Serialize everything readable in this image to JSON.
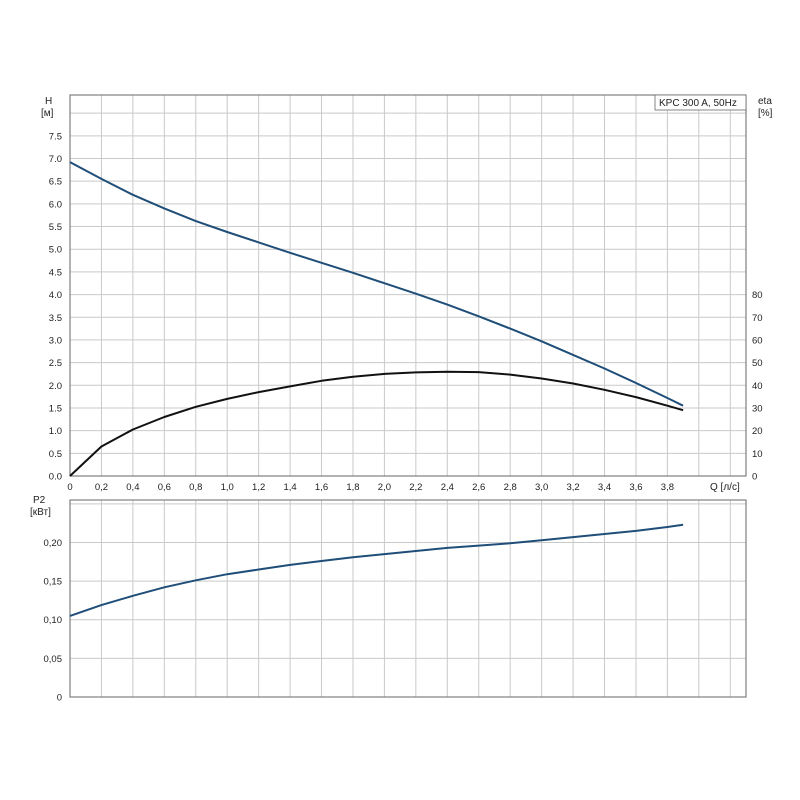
{
  "chart_data": [
    {
      "type": "line",
      "title": "",
      "legend_text": "KPC 300 A, 50Hz",
      "legend_position": "top-right",
      "grid": true,
      "x_axis": {
        "label": "Q [л/с]",
        "min": 0,
        "max": 4.3,
        "ticks": [
          "0",
          "0,2",
          "0,4",
          "0,6",
          "0,8",
          "1,0",
          "1,2",
          "1,4",
          "1,6",
          "1,8",
          "2,0",
          "2,2",
          "2,4",
          "2,6",
          "2,8",
          "3,0",
          "3,2",
          "3,4",
          "3,6",
          "3,8"
        ]
      },
      "y_axis_left": {
        "label_line1": "H",
        "label_line2": "[м]",
        "min": 0,
        "max": 8.4,
        "ticks": [
          "0.0",
          "0.5",
          "1.0",
          "1.5",
          "2.0",
          "2.5",
          "3.0",
          "3.5",
          "4.0",
          "4.5",
          "5.0",
          "5.5",
          "6.0",
          "6.5",
          "7.0",
          "7.5"
        ]
      },
      "y_axis_right": {
        "label_line1": "eta",
        "label_line2": "[%]",
        "min": 0,
        "max": 168,
        "ticks": [
          "0",
          "10",
          "20",
          "30",
          "40",
          "50",
          "60",
          "70",
          "80"
        ]
      },
      "series": [
        {
          "name": "",
          "axis": "left",
          "color": "#1f4e79",
          "x": [
            0,
            0.2,
            0.4,
            0.6,
            0.8,
            1.0,
            1.2,
            1.4,
            1.6,
            1.8,
            2.0,
            2.2,
            2.4,
            2.6,
            2.8,
            3.0,
            3.2,
            3.4,
            3.6,
            3.8,
            3.9
          ],
          "y": [
            6.92,
            6.55,
            6.2,
            5.9,
            5.62,
            5.38,
            5.15,
            4.92,
            4.7,
            4.48,
            4.25,
            4.02,
            3.78,
            3.52,
            3.25,
            2.97,
            2.67,
            2.37,
            2.05,
            1.72,
            1.55
          ]
        },
        {
          "name": "",
          "axis": "right",
          "color": "#111111",
          "x": [
            0,
            0.2,
            0.4,
            0.6,
            0.8,
            1.0,
            1.2,
            1.4,
            1.6,
            1.8,
            2.0,
            2.2,
            2.4,
            2.6,
            2.8,
            3.0,
            3.2,
            3.4,
            3.6,
            3.8,
            3.9
          ],
          "y": [
            0,
            13,
            20.5,
            26,
            30.5,
            34,
            37,
            39.5,
            42,
            43.8,
            45,
            45.7,
            46,
            45.8,
            44.7,
            43,
            40.8,
            38,
            34.8,
            31,
            29
          ]
        }
      ]
    },
    {
      "type": "line",
      "title": "",
      "grid": true,
      "x_axis": {
        "min": 0,
        "max": 4.3
      },
      "y_axis_left": {
        "label_line1": "P2",
        "label_line2": "[кВт]",
        "min": 0,
        "max": 0.255,
        "ticks": [
          "0",
          "0,05",
          "0,10",
          "0,15",
          "0,20"
        ]
      },
      "series": [
        {
          "name": "",
          "color": "#1f4e79",
          "x": [
            0,
            0.2,
            0.4,
            0.6,
            0.8,
            1.0,
            1.2,
            1.4,
            1.6,
            1.8,
            2.0,
            2.2,
            2.4,
            2.6,
            2.8,
            3.0,
            3.2,
            3.4,
            3.6,
            3.8,
            3.9
          ],
          "y": [
            0.105,
            0.119,
            0.131,
            0.142,
            0.151,
            0.159,
            0.165,
            0.171,
            0.176,
            0.181,
            0.185,
            0.189,
            0.193,
            0.196,
            0.199,
            0.203,
            0.207,
            0.211,
            0.215,
            0.22,
            0.223
          ]
        }
      ]
    }
  ]
}
